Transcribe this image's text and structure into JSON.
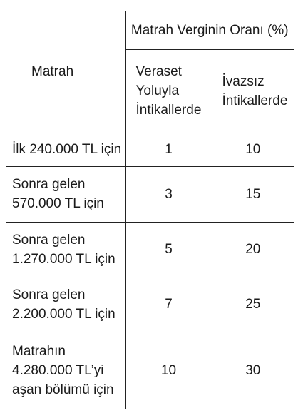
{
  "table": {
    "header": {
      "row_label": "Matrah",
      "group_label": "Matrah Verginin Oranı (%)",
      "col1_lines": [
        "Veraset",
        "Yoluyla",
        "İntikallerde"
      ],
      "col2_lines": [
        "İvazsız",
        "İntikallerde"
      ]
    },
    "rows": [
      {
        "label_lines": [
          "İlk 240.000 TL için"
        ],
        "col1": "1",
        "col2": "10"
      },
      {
        "label_lines": [
          "Sonra gelen",
          "570.000 TL için"
        ],
        "col1": "3",
        "col2": "15"
      },
      {
        "label_lines": [
          "Sonra gelen",
          "1.270.000 TL için"
        ],
        "col1": "5",
        "col2": "20"
      },
      {
        "label_lines": [
          "Sonra gelen",
          "2.200.000 TL için"
        ],
        "col1": "7",
        "col2": "25"
      },
      {
        "label_lines": [
          "Matrahın",
          "4.280.000 TL’yi",
          "aşan bölümü için"
        ],
        "col1": "10",
        "col2": "30"
      }
    ]
  }
}
